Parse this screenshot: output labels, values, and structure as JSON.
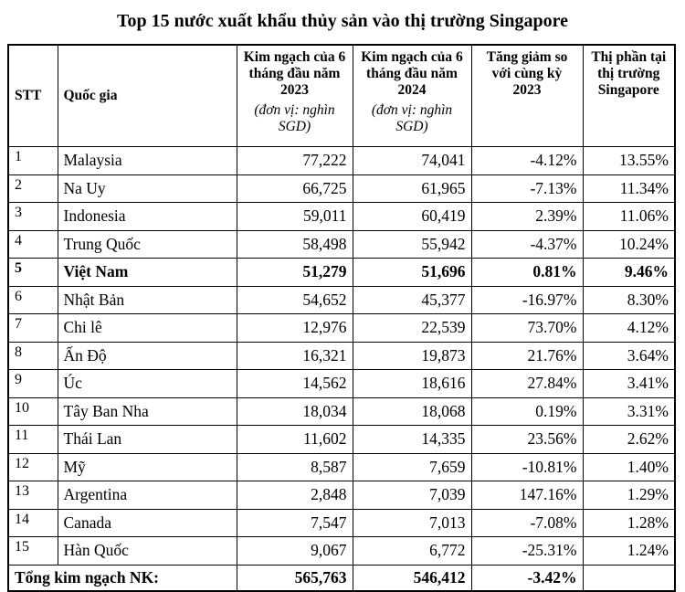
{
  "title": "Top 15 nước xuất khẩu thủy sản vào thị trường Singapore",
  "table": {
    "header": [
      {
        "title": "STT"
      },
      {
        "title": "Quốc gia"
      },
      {
        "title": "Kim ngạch của 6 tháng đầu năm 2023",
        "unit": "(đơn vị: nghìn SGD)"
      },
      {
        "title": "Kim ngạch của 6 tháng đầu năm 2024",
        "unit": "(đơn vị: nghìn SGD)"
      },
      {
        "title": "Tăng giảm so với cùng kỳ 2023"
      },
      {
        "title": "Thị phần tại thị trường Singapore"
      }
    ],
    "rows": [
      [
        "1",
        "Malaysia",
        "77,222",
        "74,041",
        "-4.12%",
        "13.55%"
      ],
      [
        "2",
        "Na Uy",
        "66,725",
        "61,965",
        "-7.13%",
        "11.34%"
      ],
      [
        "3",
        "Indonesia",
        "59,011",
        "60,419",
        "2.39%",
        "11.06%"
      ],
      [
        "4",
        "Trung Quốc",
        "58,498",
        "55,942",
        "-4.37%",
        "10.24%"
      ],
      [
        "5",
        "Việt Nam",
        "51,279",
        "51,696",
        "0.81%",
        "9.46%"
      ],
      [
        "6",
        "Nhật Bản",
        "54,652",
        "45,377",
        "-16.97%",
        "8.30%"
      ],
      [
        "7",
        "Chi lê",
        "12,976",
        "22,539",
        "73.70%",
        "4.12%"
      ],
      [
        "8",
        "Ấn Độ",
        "16,321",
        "19,873",
        "21.76%",
        "3.64%"
      ],
      [
        "9",
        "Úc",
        "14,562",
        "18,616",
        "27.84%",
        "3.41%"
      ],
      [
        "10",
        "Tây Ban Nha",
        "18,034",
        "18,068",
        "0.19%",
        "3.31%"
      ],
      [
        "11",
        "Thái Lan",
        "11,602",
        "14,335",
        "23.56%",
        "2.62%"
      ],
      [
        "12",
        "Mỹ",
        "8,587",
        "7,659",
        "-10.81%",
        "1.40%"
      ],
      [
        "13",
        "Argentina",
        "2,848",
        "7,039",
        "147.16%",
        "1.29%"
      ],
      [
        "14",
        "Canada",
        "7,547",
        "7,013",
        "-7.08%",
        "1.28%"
      ],
      [
        "15",
        "Hàn Quốc",
        "9,067",
        "6,772",
        "-25.31%",
        "1.24%"
      ]
    ],
    "total": {
      "label": "Tổng kim ngạch NK:",
      "values": [
        "565,763",
        "546,412",
        "-3.42%"
      ]
    }
  }
}
